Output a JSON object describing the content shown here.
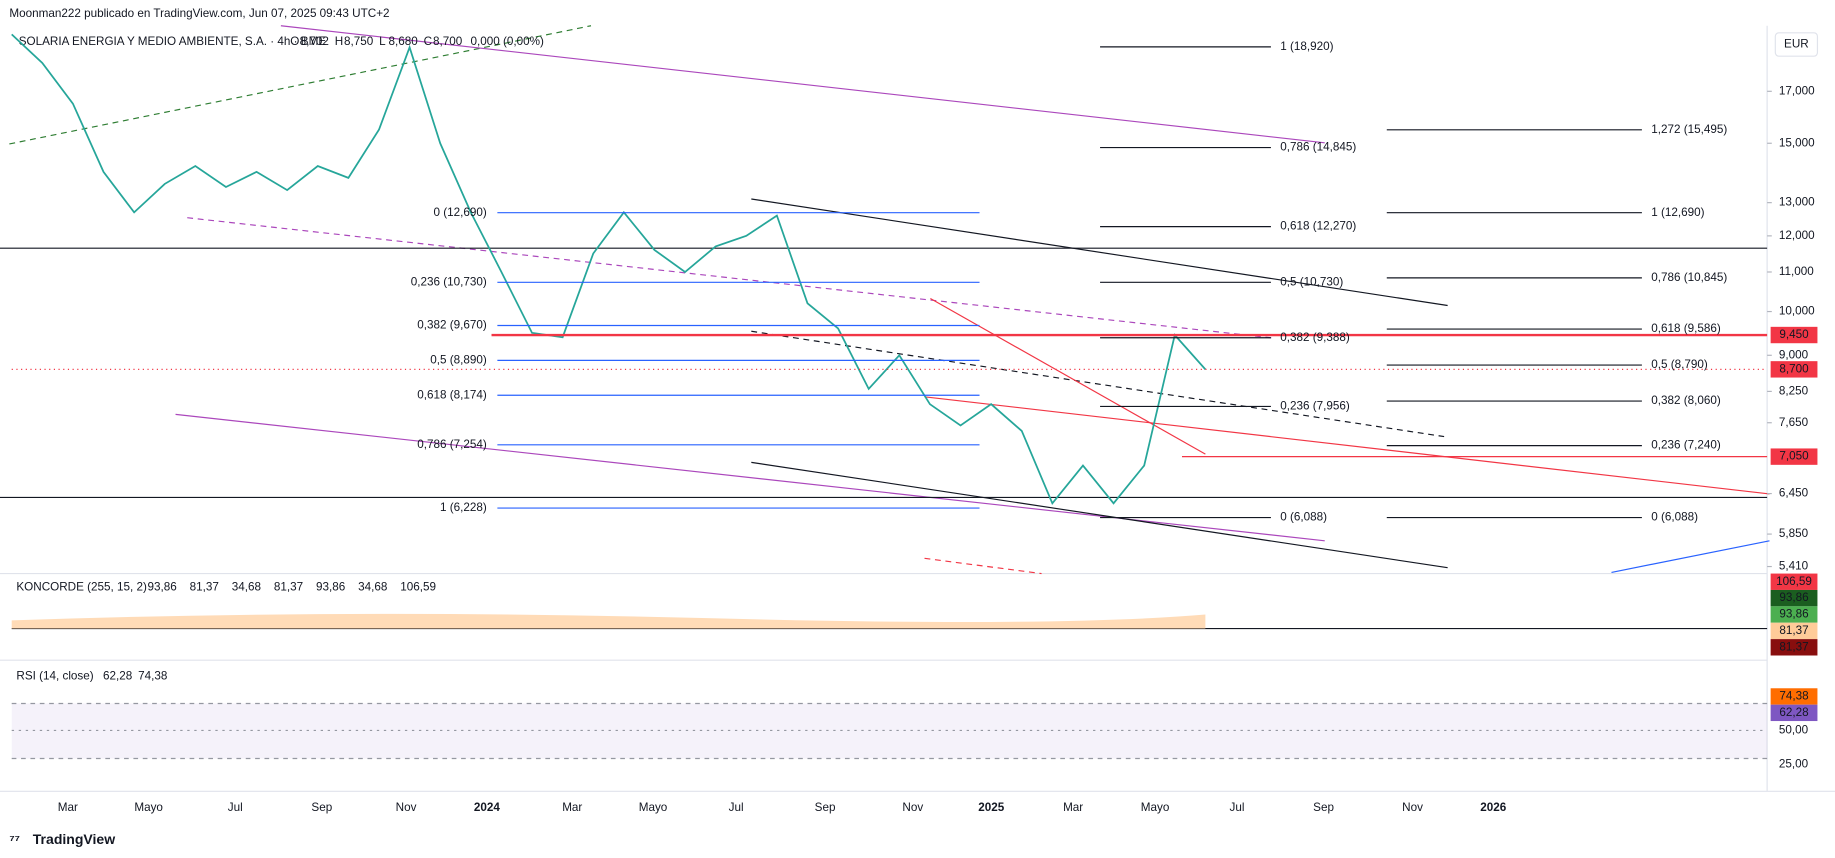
{
  "header": {
    "author": "Moonman222 publicado en TradingView.com, Jun 07, 2025 09:43 UTC+2",
    "symbol": "SOLARIA ENERGIA Y MEDIO AMBIENTE, S.A. · 4h · BME",
    "ohlc": [
      {
        "key": "O",
        "value": "8,702"
      },
      {
        "key": "H",
        "value": "8,750"
      },
      {
        "key": "L",
        "value": "8,680"
      },
      {
        "key": "C",
        "value": "8,700"
      }
    ],
    "change": "0,000 (0,00%)"
  },
  "price_axis": {
    "currency": "EUR",
    "ticks": [
      {
        "value": 17000,
        "label": "17,000"
      },
      {
        "value": 15000,
        "label": "15,000"
      },
      {
        "value": 13000,
        "label": "13,000"
      },
      {
        "value": 12000,
        "label": "12,000"
      },
      {
        "value": 11000,
        "label": "11,000"
      },
      {
        "value": 10000,
        "label": "10,000"
      },
      {
        "value": 9000,
        "label": "9,000"
      },
      {
        "value": 8250,
        "label": "8,250"
      },
      {
        "value": 7650,
        "label": "7,650"
      },
      {
        "value": 6450,
        "label": "6,450"
      },
      {
        "value": 5850,
        "label": "5,850"
      },
      {
        "value": 5410,
        "label": "5,410"
      }
    ],
    "tags": [
      {
        "value": 9450,
        "label": "9,450",
        "color": "#f23645"
      },
      {
        "value": 8700,
        "label": "8,700",
        "color": "#f23645"
      },
      {
        "value": 7050,
        "label": "7,050",
        "color": "#f23645"
      }
    ]
  },
  "price_path": {
    "color": "#26a69a",
    "values": [
      19500,
      18200,
      16500,
      14000,
      12700,
      13600,
      14200,
      13500,
      14000,
      13400,
      14200,
      13800,
      15500,
      18900,
      15000,
      12700,
      11000,
      9500,
      9400,
      11500,
      12700,
      11600,
      11000,
      11700,
      12000,
      12600,
      10200,
      9600,
      8300,
      9000,
      8000,
      7600,
      8000,
      7500,
      6300,
      6900,
      6300,
      6900,
      9450,
      8700
    ]
  },
  "fib_left": {
    "color": "#2962ff",
    "levels": [
      {
        "value": 12690,
        "label": "0 (12,690)"
      },
      {
        "value": 10730,
        "label": "0,236 (10,730)"
      },
      {
        "value": 9670,
        "label": "0,382 (9,670)"
      },
      {
        "value": 8890,
        "label": "0,5 (8,890)"
      },
      {
        "value": 8174,
        "label": "0,618 (8,174)"
      },
      {
        "value": 7254,
        "label": "0,786 (7,254)"
      },
      {
        "value": 6228,
        "label": "1 (6,228)"
      }
    ]
  },
  "fib_middle": {
    "color": "#131722",
    "levels": [
      {
        "value": 18920,
        "label": "1 (18,920)"
      },
      {
        "value": 14845,
        "label": "0,786 (14,845)"
      },
      {
        "value": 12270,
        "label": "0,618 (12,270)"
      },
      {
        "value": 10730,
        "label": "0,5 (10,730)"
      },
      {
        "value": 9388,
        "label": "0,382 (9,388)"
      },
      {
        "value": 7956,
        "label": "0,236 (7,956)"
      },
      {
        "value": 6088,
        "label": "0 (6,088)"
      }
    ]
  },
  "fib_right": {
    "color": "#131722",
    "levels": [
      {
        "value": 15495,
        "label": "1,272 (15,495)"
      },
      {
        "value": 12690,
        "label": "1 (12,690)"
      },
      {
        "value": 10845,
        "label": "0,786 (10,845)"
      },
      {
        "value": 9586,
        "label": "0,618 (9,586)"
      },
      {
        "value": 8790,
        "label": "0,5 (8,790)"
      },
      {
        "value": 8060,
        "label": "0,382 (8,060)"
      },
      {
        "value": 7240,
        "label": "0,236 (7,240)"
      },
      {
        "value": 6088,
        "label": "0 (6,088)"
      }
    ]
  },
  "koncorde": {
    "title": "KONCORDE (255, 15, 2)",
    "values": [
      {
        "text": "93,86",
        "color": "#4caf50"
      },
      {
        "text": "81,37",
        "color": "#ffb27a"
      },
      {
        "text": "34,68",
        "color": "#00bcd4"
      },
      {
        "text": "81,37",
        "color": "#880e0e"
      },
      {
        "text": "93,86",
        "color": "#1b5e20"
      },
      {
        "text": "34,68",
        "color": "#1a237e"
      },
      {
        "text": "106,59",
        "color": "#f23645"
      }
    ],
    "tags": [
      {
        "text": "106,59",
        "color": "#f23645"
      },
      {
        "text": "93,86",
        "color": "#1b5e20"
      },
      {
        "text": "93,86",
        "color": "#4caf50"
      },
      {
        "text": "81,37",
        "color": "#ffcc99"
      },
      {
        "text": "81,37",
        "color": "#880e0e"
      }
    ]
  },
  "rsi": {
    "title": "RSI (14, close)",
    "values": [
      {
        "text": "62,28",
        "color": "#7e57c2"
      },
      {
        "text": "74,38",
        "color": "#ff6d00"
      }
    ],
    "axis": [
      "50,00",
      "25,00"
    ],
    "tags": [
      {
        "text": "74,38",
        "color": "#ff6d00"
      },
      {
        "text": "62,28",
        "color": "#7e57c2"
      }
    ]
  },
  "time_axis": [
    "Mar",
    "Mayo",
    "Jul",
    "Sep",
    "Nov",
    "2024",
    "Mar",
    "Mayo",
    "Jul",
    "Sep",
    "Nov",
    "2025",
    "Mar",
    "Mayo",
    "Jul",
    "Sep",
    "Nov",
    "2026"
  ],
  "footer": "TradingView"
}
